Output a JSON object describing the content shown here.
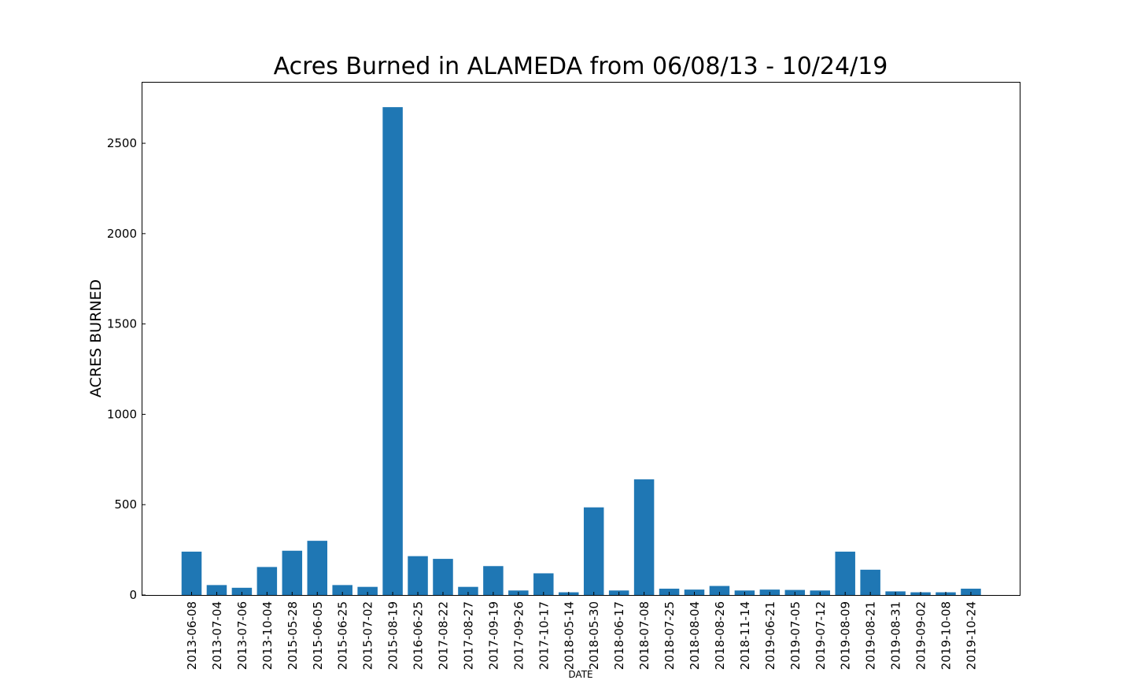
{
  "chart_data": {
    "type": "bar",
    "title": "Acres Burned in ALAMEDA from 06/08/13 - 10/24/19",
    "xlabel": "DATE",
    "ylabel": "ACRES BURNED",
    "ylim": [
      0,
      2840
    ],
    "yticks": [
      0,
      500,
      1000,
      1500,
      2000,
      2500
    ],
    "grid": false,
    "legend": "none",
    "bar_color": "#1f77b4",
    "categories": [
      "2013-06-08",
      "2013-07-04",
      "2013-07-06",
      "2013-10-04",
      "2015-05-28",
      "2015-06-05",
      "2015-06-25",
      "2015-07-02",
      "2015-08-19",
      "2016-06-25",
      "2017-08-22",
      "2017-08-27",
      "2017-09-19",
      "2017-09-26",
      "2017-10-17",
      "2018-05-14",
      "2018-05-30",
      "2018-06-17",
      "2018-07-08",
      "2018-07-25",
      "2018-08-04",
      "2018-08-26",
      "2018-11-14",
      "2019-06-21",
      "2019-07-05",
      "2019-07-12",
      "2019-08-09",
      "2019-08-21",
      "2019-08-31",
      "2019-09-02",
      "2019-10-08",
      "2019-10-24"
    ],
    "values": [
      240,
      55,
      40,
      155,
      245,
      300,
      55,
      45,
      2700,
      215,
      200,
      45,
      160,
      25,
      120,
      15,
      485,
      25,
      640,
      35,
      30,
      50,
      25,
      30,
      28,
      25,
      240,
      140,
      20,
      15,
      15,
      35
    ]
  }
}
